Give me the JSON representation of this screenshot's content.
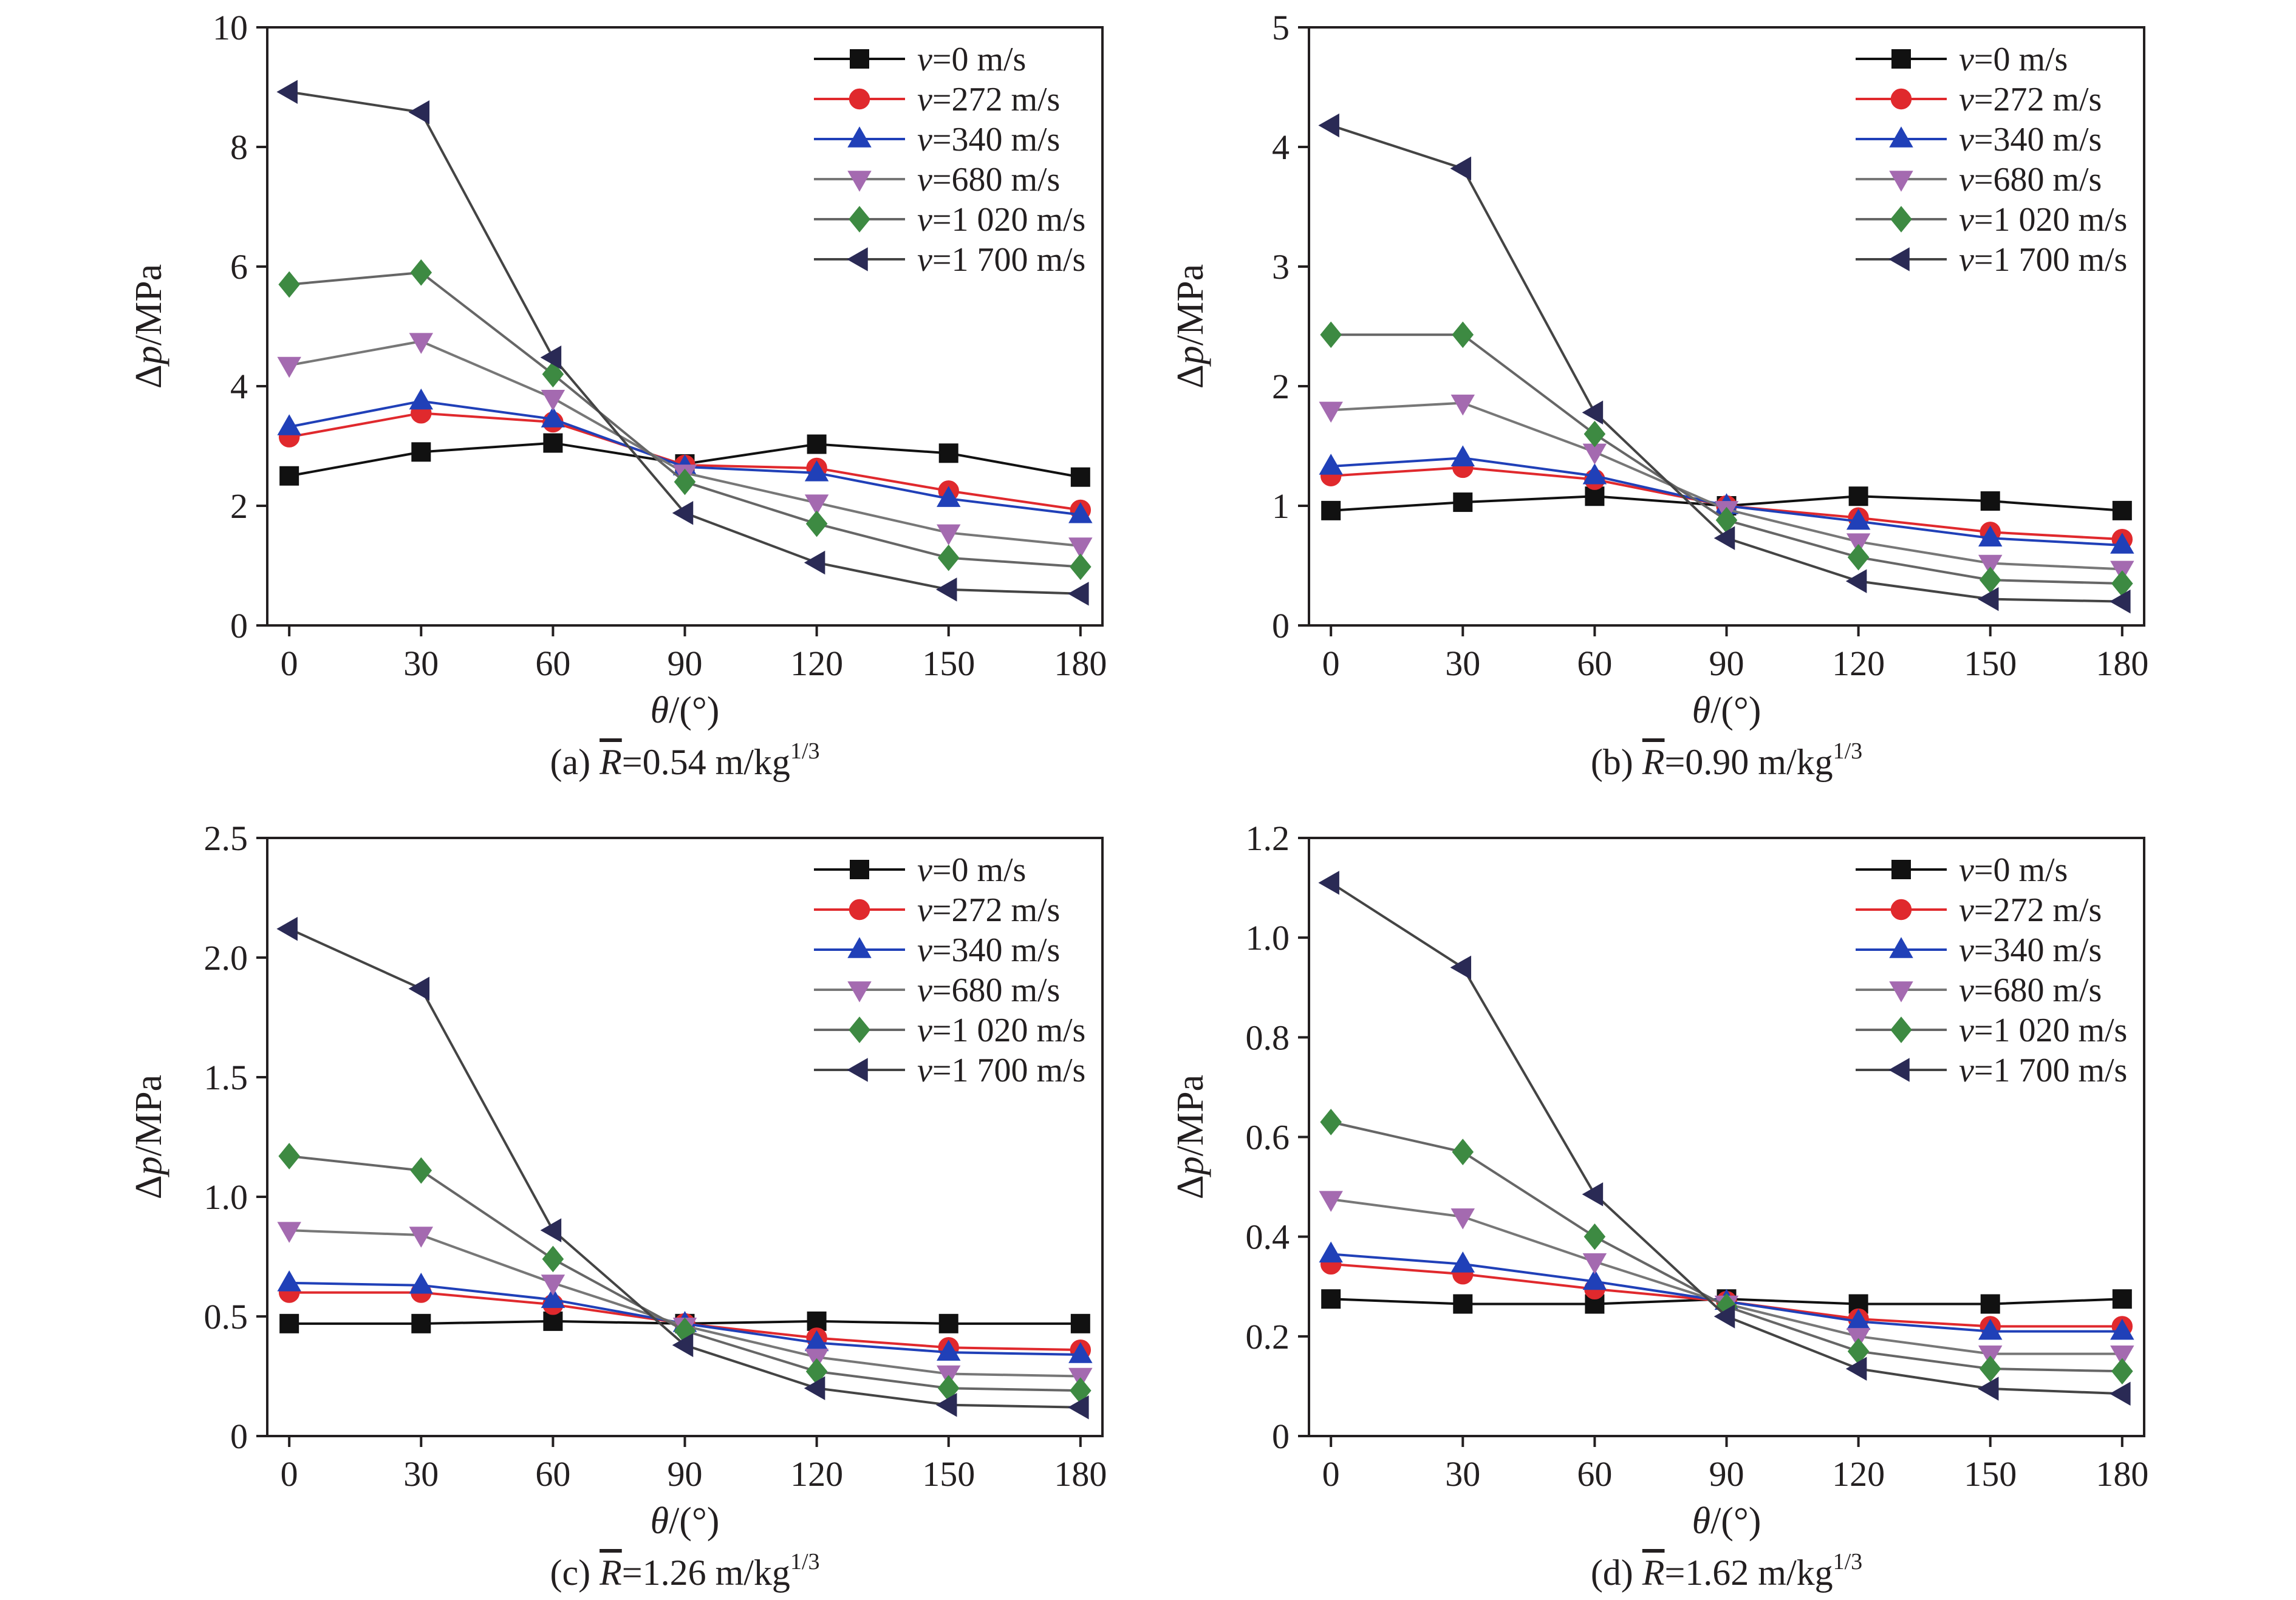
{
  "colors": {
    "0": "#111111",
    "272": "#e0292d",
    "340": "#2040b8",
    "680": "#a46ab0",
    "1020": "#3d8a42",
    "1700": "#2a2a55"
  },
  "line_colors": {
    "0": "#111111",
    "272": "#e0292d",
    "340": "#2040b8",
    "680": "#777777",
    "1020": "#666666",
    "1700": "#444444"
  },
  "chart_data": [
    {
      "type": "line",
      "caption_prefix": "(a) ",
      "caption_symbol": "R",
      "caption_value": "=0.54 m/kg",
      "caption_sup": "1/3",
      "xlabel_symbol": "θ",
      "xlabel_unit": "/(°)",
      "ylabel_symbol": "p",
      "ylabel_prefix": "Δ",
      "ylabel_unit": "/MPa",
      "xlim": [
        -5,
        185
      ],
      "ylim": [
        0,
        10
      ],
      "x": [
        0,
        30,
        60,
        90,
        120,
        150,
        180
      ],
      "xticks": [
        "0",
        "30",
        "60",
        "90",
        "120",
        "150",
        "180"
      ],
      "yticks": [
        0,
        2,
        4,
        6,
        8,
        10
      ],
      "ytick_labels": [
        "0",
        "2",
        "4",
        "6",
        "8",
        "10"
      ],
      "series": [
        {
          "name_prefix": "v",
          "name_value": "=0 m/s",
          "marker": "square",
          "key": "0",
          "values": [
            2.5,
            2.9,
            3.05,
            2.7,
            3.03,
            2.88,
            2.48
          ]
        },
        {
          "name_prefix": "v",
          "name_value": "=272 m/s",
          "marker": "circle",
          "key": "272",
          "values": [
            3.15,
            3.55,
            3.4,
            2.68,
            2.63,
            2.25,
            1.93
          ]
        },
        {
          "name_prefix": "v",
          "name_value": "=340 m/s",
          "marker": "triangle-up",
          "key": "340",
          "values": [
            3.32,
            3.75,
            3.45,
            2.65,
            2.55,
            2.12,
            1.85
          ]
        },
        {
          "name_prefix": "v",
          "name_value": "=680 m/s",
          "marker": "triangle-down",
          "key": "680",
          "values": [
            4.35,
            4.75,
            3.8,
            2.55,
            2.05,
            1.55,
            1.33
          ]
        },
        {
          "name_prefix": "v",
          "name_value": "=1 020 m/s",
          "marker": "diamond",
          "key": "1020",
          "values": [
            5.7,
            5.9,
            4.2,
            2.4,
            1.7,
            1.13,
            0.98
          ]
        },
        {
          "name_prefix": "v",
          "name_value": "=1 700 m/s",
          "marker": "triangle-left",
          "key": "1700",
          "values": [
            8.92,
            8.58,
            4.48,
            1.88,
            1.05,
            0.6,
            0.53
          ]
        }
      ]
    },
    {
      "type": "line",
      "caption_prefix": "(b) ",
      "caption_symbol": "R",
      "caption_value": "=0.90 m/kg",
      "caption_sup": "1/3",
      "xlabel_symbol": "θ",
      "xlabel_unit": "/(°)",
      "ylabel_symbol": "p",
      "ylabel_prefix": "Δ",
      "ylabel_unit": "/MPa",
      "xlim": [
        -5,
        185
      ],
      "ylim": [
        0,
        5
      ],
      "x": [
        0,
        30,
        60,
        90,
        120,
        150,
        180
      ],
      "xticks": [
        "0",
        "30",
        "60",
        "90",
        "120",
        "150",
        "180"
      ],
      "yticks": [
        0,
        1,
        2,
        3,
        4,
        5
      ],
      "ytick_labels": [
        "0",
        "1",
        "2",
        "3",
        "4",
        "5"
      ],
      "series": [
        {
          "name_prefix": "v",
          "name_value": "=0 m/s",
          "marker": "square",
          "key": "0",
          "values": [
            0.96,
            1.03,
            1.08,
            1.0,
            1.08,
            1.04,
            0.96
          ]
        },
        {
          "name_prefix": "v",
          "name_value": "=272 m/s",
          "marker": "circle",
          "key": "272",
          "values": [
            1.25,
            1.32,
            1.22,
            1.0,
            0.9,
            0.78,
            0.72
          ]
        },
        {
          "name_prefix": "v",
          "name_value": "=340 m/s",
          "marker": "triangle-up",
          "key": "340",
          "values": [
            1.33,
            1.4,
            1.25,
            1.0,
            0.87,
            0.73,
            0.67
          ]
        },
        {
          "name_prefix": "v",
          "name_value": "=680 m/s",
          "marker": "triangle-down",
          "key": "680",
          "values": [
            1.8,
            1.86,
            1.45,
            0.97,
            0.7,
            0.52,
            0.47
          ]
        },
        {
          "name_prefix": "v",
          "name_value": "=1 020 m/s",
          "marker": "diamond",
          "key": "1020",
          "values": [
            2.43,
            2.43,
            1.6,
            0.88,
            0.57,
            0.38,
            0.35
          ]
        },
        {
          "name_prefix": "v",
          "name_value": "=1 700 m/s",
          "marker": "triangle-left",
          "key": "1700",
          "values": [
            4.18,
            3.82,
            1.78,
            0.73,
            0.37,
            0.22,
            0.2
          ]
        }
      ]
    },
    {
      "type": "line",
      "caption_prefix": "(c) ",
      "caption_symbol": "R",
      "caption_value": "=1.26 m/kg",
      "caption_sup": "1/3",
      "xlabel_symbol": "θ",
      "xlabel_unit": "/(°)",
      "ylabel_symbol": "p",
      "ylabel_prefix": "Δ",
      "ylabel_unit": "/MPa",
      "xlim": [
        -5,
        185
      ],
      "ylim": [
        0,
        2.5
      ],
      "x": [
        0,
        30,
        60,
        90,
        120,
        150,
        180
      ],
      "xticks": [
        "0",
        "30",
        "60",
        "90",
        "120",
        "150",
        "180"
      ],
      "yticks": [
        0,
        0.5,
        1.0,
        1.5,
        2.0,
        2.5
      ],
      "ytick_labels": [
        "0",
        "0.5",
        "1.0",
        "1.5",
        "2.0",
        "2.5"
      ],
      "series": [
        {
          "name_prefix": "v",
          "name_value": "=0 m/s",
          "marker": "square",
          "key": "0",
          "values": [
            0.47,
            0.47,
            0.48,
            0.47,
            0.48,
            0.47,
            0.47
          ]
        },
        {
          "name_prefix": "v",
          "name_value": "=272 m/s",
          "marker": "circle",
          "key": "272",
          "values": [
            0.6,
            0.6,
            0.55,
            0.47,
            0.41,
            0.37,
            0.36
          ]
        },
        {
          "name_prefix": "v",
          "name_value": "=340 m/s",
          "marker": "triangle-up",
          "key": "340",
          "values": [
            0.64,
            0.63,
            0.57,
            0.47,
            0.39,
            0.35,
            0.34
          ]
        },
        {
          "name_prefix": "v",
          "name_value": "=680 m/s",
          "marker": "triangle-down",
          "key": "680",
          "values": [
            0.86,
            0.84,
            0.64,
            0.46,
            0.33,
            0.26,
            0.25
          ]
        },
        {
          "name_prefix": "v",
          "name_value": "=1 020 m/s",
          "marker": "diamond",
          "key": "1020",
          "values": [
            1.17,
            1.11,
            0.74,
            0.44,
            0.27,
            0.2,
            0.19
          ]
        },
        {
          "name_prefix": "v",
          "name_value": "=1 700 m/s",
          "marker": "triangle-left",
          "key": "1700",
          "values": [
            2.12,
            1.87,
            0.86,
            0.38,
            0.2,
            0.13,
            0.12
          ]
        }
      ]
    },
    {
      "type": "line",
      "caption_prefix": "(d) ",
      "caption_symbol": "R",
      "caption_value": "=1.62 m/kg",
      "caption_sup": "1/3",
      "xlabel_symbol": "θ",
      "xlabel_unit": "/(°)",
      "ylabel_symbol": "p",
      "ylabel_prefix": "Δ",
      "ylabel_unit": "/MPa",
      "xlim": [
        -5,
        185
      ],
      "ylim": [
        0,
        1.2
      ],
      "x": [
        0,
        30,
        60,
        90,
        120,
        150,
        180
      ],
      "xticks": [
        "0",
        "30",
        "60",
        "90",
        "120",
        "150",
        "180"
      ],
      "yticks": [
        0,
        0.2,
        0.4,
        0.6,
        0.8,
        1.0,
        1.2
      ],
      "ytick_labels": [
        "0",
        "0.2",
        "0.4",
        "0.6",
        "0.8",
        "1.0",
        "1.2"
      ],
      "series": [
        {
          "name_prefix": "v",
          "name_value": "=0 m/s",
          "marker": "square",
          "key": "0",
          "values": [
            0.275,
            0.265,
            0.265,
            0.275,
            0.265,
            0.265,
            0.275
          ]
        },
        {
          "name_prefix": "v",
          "name_value": "=272 m/s",
          "marker": "circle",
          "key": "272",
          "values": [
            0.345,
            0.325,
            0.295,
            0.27,
            0.235,
            0.22,
            0.22
          ]
        },
        {
          "name_prefix": "v",
          "name_value": "=340 m/s",
          "marker": "triangle-up",
          "key": "340",
          "values": [
            0.365,
            0.345,
            0.31,
            0.27,
            0.23,
            0.21,
            0.21
          ]
        },
        {
          "name_prefix": "v",
          "name_value": "=680 m/s",
          "marker": "triangle-down",
          "key": "680",
          "values": [
            0.475,
            0.44,
            0.35,
            0.265,
            0.2,
            0.165,
            0.165
          ]
        },
        {
          "name_prefix": "v",
          "name_value": "=1 020 m/s",
          "marker": "diamond",
          "key": "1020",
          "values": [
            0.63,
            0.57,
            0.4,
            0.26,
            0.17,
            0.135,
            0.13
          ]
        },
        {
          "name_prefix": "v",
          "name_value": "=1 700 m/s",
          "marker": "triangle-left",
          "key": "1700",
          "values": [
            1.11,
            0.94,
            0.485,
            0.24,
            0.135,
            0.095,
            0.085
          ]
        }
      ]
    }
  ]
}
